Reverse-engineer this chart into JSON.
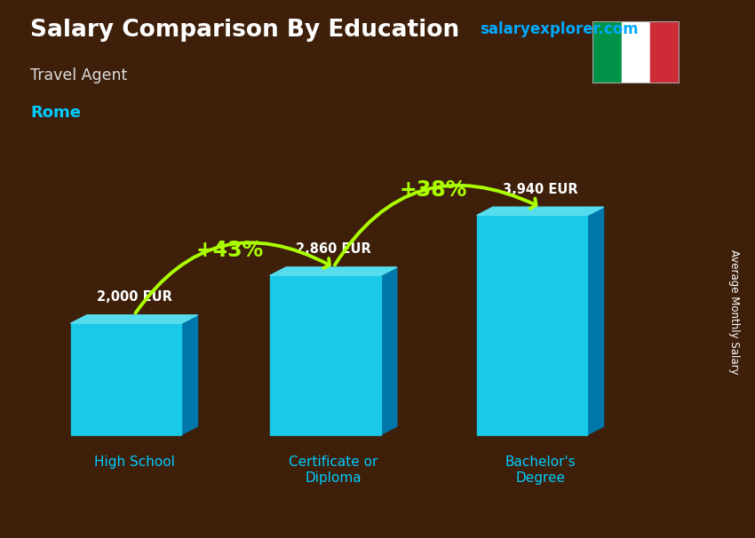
{
  "title": "Salary Comparison By Education",
  "subtitle": "Travel Agent",
  "city": "Rome",
  "watermark": "salaryexplorer.com",
  "ylabel": "Average Monthly Salary",
  "categories": [
    "High School",
    "Certificate or\nDiploma",
    "Bachelor's\nDegree"
  ],
  "values": [
    2000,
    2860,
    3940
  ],
  "value_labels": [
    "2,000 EUR",
    "2,860 EUR",
    "3,940 EUR"
  ],
  "bar_face_color": "#1ac8e8",
  "bar_side_color": "#0077aa",
  "bar_top_color": "#55ddee",
  "pct_labels": [
    "+43%",
    "+38%"
  ],
  "bg_color": "#3d1f0a",
  "title_color": "#ffffff",
  "subtitle_color": "#dddddd",
  "city_color": "#00ccff",
  "pct_color": "#aaff00",
  "value_color": "#ffffff",
  "xlabel_color": "#00ccff",
  "watermark_color": "#00aaff",
  "flag_green": "#009246",
  "flag_white": "#ffffff",
  "flag_red": "#ce2b37",
  "bar_positions": [
    1.4,
    4.1,
    6.9
  ],
  "bar_width": 1.5,
  "ylim_max": 5200,
  "xlim_max": 9.0
}
